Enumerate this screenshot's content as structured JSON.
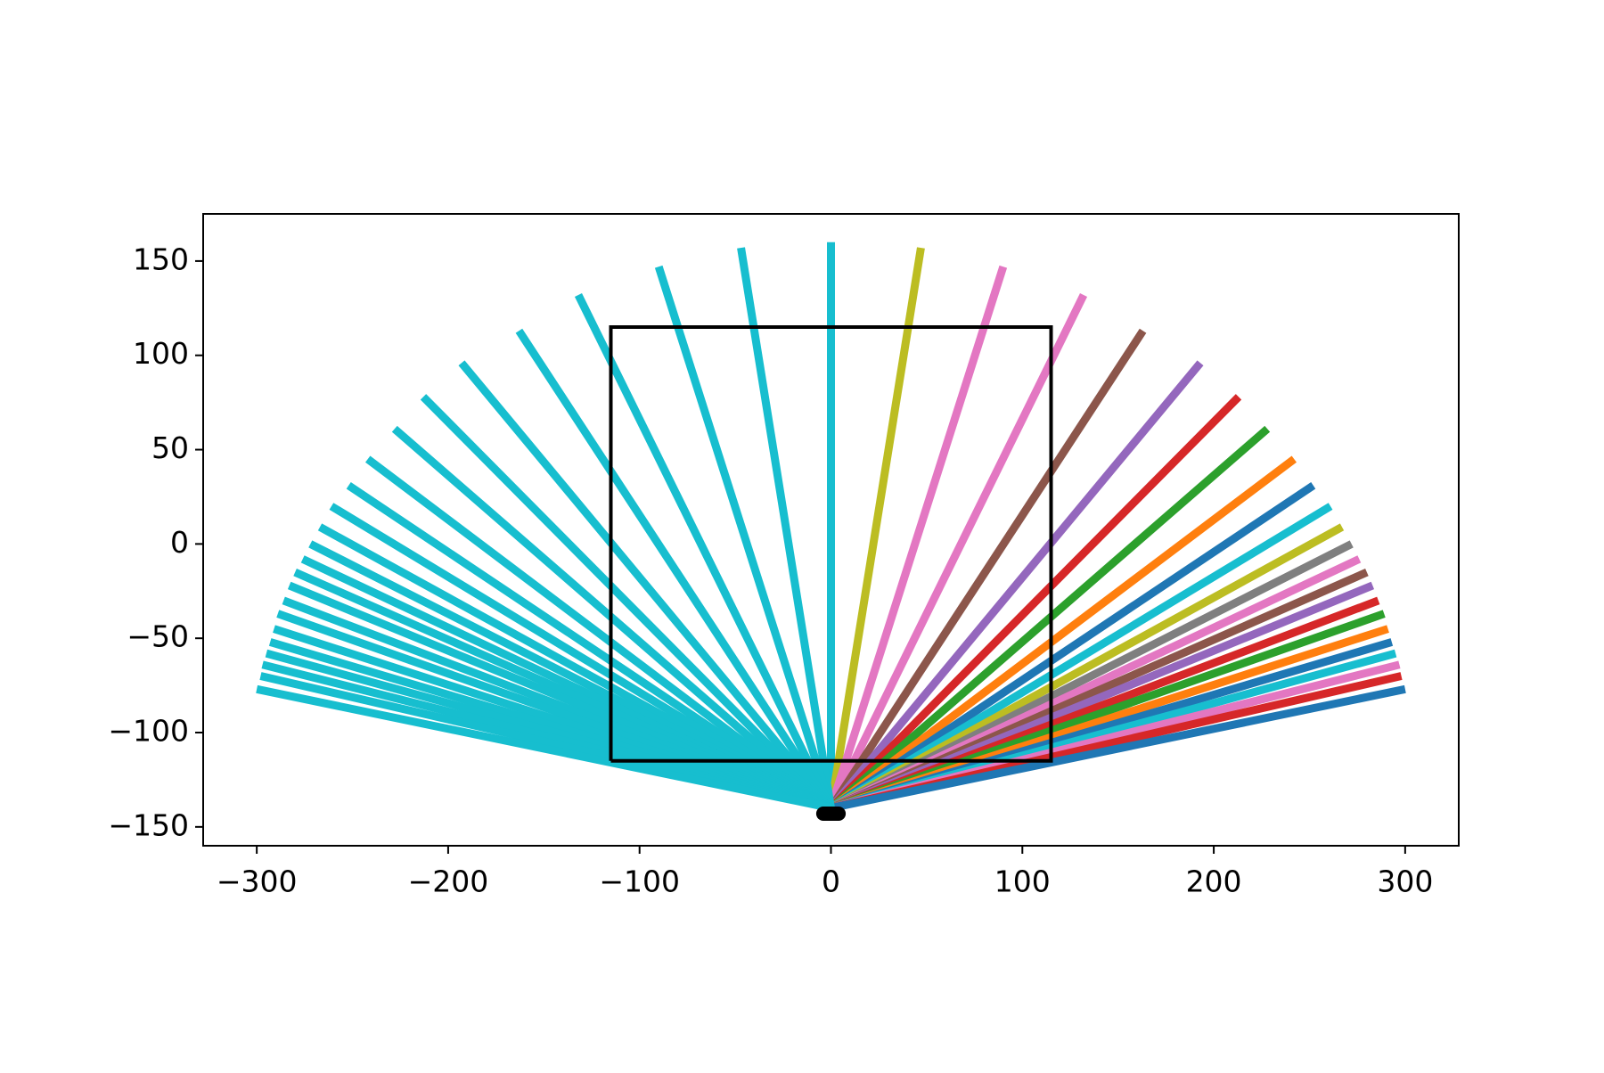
{
  "chart_data": {
    "type": "line",
    "xlim": [
      -328,
      328
    ],
    "ylim": [
      -160,
      175
    ],
    "xticks": [
      {
        "value": -300,
        "label": "−300"
      },
      {
        "value": -200,
        "label": "−200"
      },
      {
        "value": -100,
        "label": "−100"
      },
      0,
      100,
      200,
      300
    ],
    "yticks": [
      {
        "value": -150,
        "label": "−150"
      },
      {
        "value": -100,
        "label": "−100"
      },
      {
        "value": -50,
        "label": "−50"
      },
      0,
      50,
      100,
      150
    ],
    "grid": false,
    "series": [
      {
        "color": "#17becf",
        "x": [
          0,
          0
        ],
        "y": [
          -140,
          160
        ]
      },
      {
        "color": "#bcbd22",
        "x": [
          0,
          47
        ],
        "y": [
          -140,
          157
        ]
      },
      {
        "color": "#e377c2",
        "x": [
          0,
          90
        ],
        "y": [
          -140,
          147
        ]
      },
      {
        "color": "#e377c2",
        "x": [
          0,
          132
        ],
        "y": [
          -140,
          132
        ]
      },
      {
        "color": "#8c564b",
        "x": [
          0,
          163
        ],
        "y": [
          -140,
          113
        ]
      },
      {
        "color": "#9467bd",
        "x": [
          0,
          193
        ],
        "y": [
          -140,
          96
        ]
      },
      {
        "color": "#d62728",
        "x": [
          0,
          213
        ],
        "y": [
          -140,
          78
        ]
      },
      {
        "color": "#2ca02c",
        "x": [
          0,
          228
        ],
        "y": [
          -140,
          61
        ]
      },
      {
        "color": "#ff7f0e",
        "x": [
          0,
          242
        ],
        "y": [
          -140,
          45
        ]
      },
      {
        "color": "#1f77b4",
        "x": [
          0,
          252
        ],
        "y": [
          -140,
          31
        ]
      },
      {
        "color": "#17becf",
        "x": [
          0,
          261
        ],
        "y": [
          -140,
          20
        ]
      },
      {
        "color": "#bcbd22",
        "x": [
          0,
          267
        ],
        "y": [
          -140,
          9
        ]
      },
      {
        "color": "#7f7f7f",
        "x": [
          0,
          272
        ],
        "y": [
          -140,
          0
        ]
      },
      {
        "color": "#e377c2",
        "x": [
          0,
          276
        ],
        "y": [
          -140,
          -8
        ]
      },
      {
        "color": "#8c564b",
        "x": [
          0,
          280
        ],
        "y": [
          -140,
          -15
        ]
      },
      {
        "color": "#9467bd",
        "x": [
          0,
          283
        ],
        "y": [
          -140,
          -22
        ]
      },
      {
        "color": "#d62728",
        "x": [
          0,
          286
        ],
        "y": [
          -140,
          -30
        ]
      },
      {
        "color": "#2ca02c",
        "x": [
          0,
          289
        ],
        "y": [
          -140,
          -37
        ]
      },
      {
        "color": "#ff7f0e",
        "x": [
          0,
          291
        ],
        "y": [
          -140,
          -45
        ]
      },
      {
        "color": "#1f77b4",
        "x": [
          0,
          293
        ],
        "y": [
          -140,
          -52
        ]
      },
      {
        "color": "#17becf",
        "x": [
          0,
          295
        ],
        "y": [
          -140,
          -58
        ]
      },
      {
        "color": "#e377c2",
        "x": [
          0,
          297
        ],
        "y": [
          -140,
          -64
        ]
      },
      {
        "color": "#d62728",
        "x": [
          0,
          298
        ],
        "y": [
          -140,
          -70
        ]
      },
      {
        "color": "#1f77b4",
        "x": [
          0,
          300
        ],
        "y": [
          -140,
          -77
        ]
      },
      {
        "color": "#17becf",
        "x": [
          0,
          -47
        ],
        "y": [
          -140,
          157
        ]
      },
      {
        "color": "#17becf",
        "x": [
          0,
          -90
        ],
        "y": [
          -140,
          147
        ]
      },
      {
        "color": "#17becf",
        "x": [
          0,
          -132
        ],
        "y": [
          -140,
          132
        ]
      },
      {
        "color": "#17becf",
        "x": [
          0,
          -163
        ],
        "y": [
          -140,
          113
        ]
      },
      {
        "color": "#17becf",
        "x": [
          0,
          -193
        ],
        "y": [
          -140,
          96
        ]
      },
      {
        "color": "#17becf",
        "x": [
          0,
          -213
        ],
        "y": [
          -140,
          78
        ]
      },
      {
        "color": "#17becf",
        "x": [
          0,
          -228
        ],
        "y": [
          -140,
          61
        ]
      },
      {
        "color": "#17becf",
        "x": [
          0,
          -242
        ],
        "y": [
          -140,
          45
        ]
      },
      {
        "color": "#17becf",
        "x": [
          0,
          -252
        ],
        "y": [
          -140,
          31
        ]
      },
      {
        "color": "#17becf",
        "x": [
          0,
          -261
        ],
        "y": [
          -140,
          20
        ]
      },
      {
        "color": "#17becf",
        "x": [
          0,
          -267
        ],
        "y": [
          -140,
          9
        ]
      },
      {
        "color": "#17becf",
        "x": [
          0,
          -272
        ],
        "y": [
          -140,
          0
        ]
      },
      {
        "color": "#17becf",
        "x": [
          0,
          -276
        ],
        "y": [
          -140,
          -8
        ]
      },
      {
        "color": "#17becf",
        "x": [
          0,
          -280
        ],
        "y": [
          -140,
          -15
        ]
      },
      {
        "color": "#17becf",
        "x": [
          0,
          -283
        ],
        "y": [
          -140,
          -22
        ]
      },
      {
        "color": "#17becf",
        "x": [
          0,
          -286
        ],
        "y": [
          -140,
          -30
        ]
      },
      {
        "color": "#17becf",
        "x": [
          0,
          -289
        ],
        "y": [
          -140,
          -37
        ]
      },
      {
        "color": "#17becf",
        "x": [
          0,
          -291
        ],
        "y": [
          -140,
          -45
        ]
      },
      {
        "color": "#17becf",
        "x": [
          0,
          -293
        ],
        "y": [
          -140,
          -52
        ]
      },
      {
        "color": "#17becf",
        "x": [
          0,
          -295
        ],
        "y": [
          -140,
          -58
        ]
      },
      {
        "color": "#17becf",
        "x": [
          0,
          -297
        ],
        "y": [
          -140,
          -64
        ]
      },
      {
        "color": "#17becf",
        "x": [
          0,
          -298
        ],
        "y": [
          -140,
          -70
        ]
      },
      {
        "color": "#17becf",
        "x": [
          0,
          -300
        ],
        "y": [
          -140,
          -77
        ]
      },
      {
        "color": "#000000",
        "x": [
          -115,
          115,
          115,
          -115,
          -115
        ],
        "y": [
          -115,
          -115,
          115,
          115,
          -115
        ]
      },
      {
        "color": "#000000",
        "x": [
          -4,
          4
        ],
        "y": [
          -143,
          -143
        ]
      }
    ]
  }
}
